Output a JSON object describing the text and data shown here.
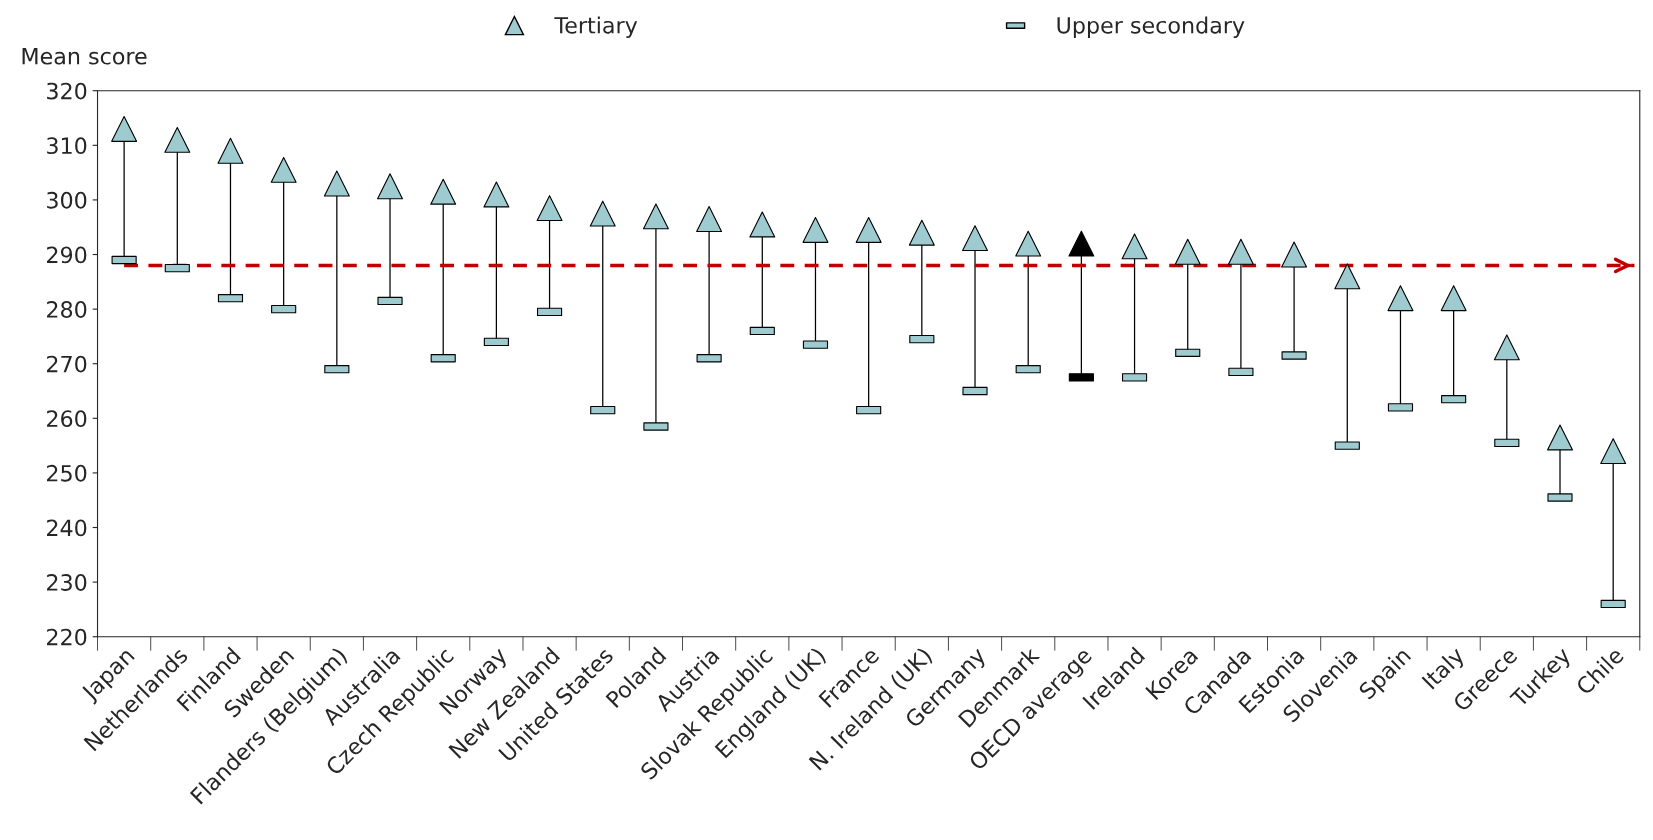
{
  "chart_data": {
    "type": "scatter",
    "ylabel": "Mean score",
    "categories": [
      "Japan",
      "Netherlands",
      "Finland",
      "Sweden",
      "Flanders (Belgium)",
      "Australia",
      "Czech Republic",
      "Norway",
      "New Zealand",
      "United States",
      "Poland",
      "Austria",
      "Slovak Republic",
      "England (UK)",
      "France",
      "N. Ireland (UK)",
      "Germany",
      "Denmark",
      "OECD average",
      "Ireland",
      "Korea",
      "Canada",
      "Estonia",
      "Slovenia",
      "Spain",
      "Italy",
      "Greece",
      "Turkey",
      "Chile"
    ],
    "series": [
      {
        "name": "Tertiary",
        "marker": "triangle",
        "color": "#9dcbcf",
        "colors": [
          "#9dcbcf",
          "#9dcbcf",
          "#9dcbcf",
          "#9dcbcf",
          "#9dcbcf",
          "#9dcbcf",
          "#9dcbcf",
          "#9dcbcf",
          "#9dcbcf",
          "#9dcbcf",
          "#9dcbcf",
          "#9dcbcf",
          "#9dcbcf",
          "#9dcbcf",
          "#9dcbcf",
          "#9dcbcf",
          "#9dcbcf",
          "#9dcbcf",
          "#000000",
          "#9dcbcf",
          "#9dcbcf",
          "#9dcbcf",
          "#9dcbcf",
          "#9dcbcf",
          "#9dcbcf",
          "#9dcbcf",
          "#9dcbcf",
          "#9dcbcf",
          "#9dcbcf"
        ],
        "values": [
          313,
          311,
          309,
          305.5,
          303,
          302.5,
          301.5,
          301,
          298.5,
          297.5,
          297,
          296.5,
          295.5,
          294.5,
          294.5,
          294,
          293,
          292,
          292,
          291.5,
          290.5,
          290.5,
          290,
          286,
          282,
          282,
          273,
          256.5,
          254
        ]
      },
      {
        "name": "Upper secondary",
        "marker": "square",
        "color": "#9dcbcf",
        "colors": [
          "#9dcbcf",
          "#9dcbcf",
          "#9dcbcf",
          "#9dcbcf",
          "#9dcbcf",
          "#9dcbcf",
          "#9dcbcf",
          "#9dcbcf",
          "#9dcbcf",
          "#9dcbcf",
          "#9dcbcf",
          "#9dcbcf",
          "#9dcbcf",
          "#9dcbcf",
          "#9dcbcf",
          "#9dcbcf",
          "#9dcbcf",
          "#9dcbcf",
          "#000000",
          "#9dcbcf",
          "#9dcbcf",
          "#9dcbcf",
          "#9dcbcf",
          "#9dcbcf",
          "#9dcbcf",
          "#9dcbcf",
          "#9dcbcf",
          "#9dcbcf",
          "#9dcbcf"
        ],
        "values": [
          289,
          287.5,
          282,
          280,
          269,
          281.5,
          271,
          274,
          279.5,
          261.5,
          258.5,
          271,
          276,
          273.5,
          261.5,
          274.5,
          265,
          269,
          267.5,
          267.5,
          272,
          268.5,
          271.5,
          255,
          262,
          263.5,
          255.5,
          245.5,
          226
        ]
      }
    ],
    "ref_lines": [
      {
        "axis": "y",
        "value": 288,
        "color": "#c00000",
        "line_style": "dashed"
      }
    ],
    "ylim": [
      220,
      320
    ],
    "yticks": [
      220,
      230,
      240,
      250,
      260,
      270,
      280,
      290,
      300,
      310,
      320
    ],
    "legend": "top",
    "grid": false
  }
}
